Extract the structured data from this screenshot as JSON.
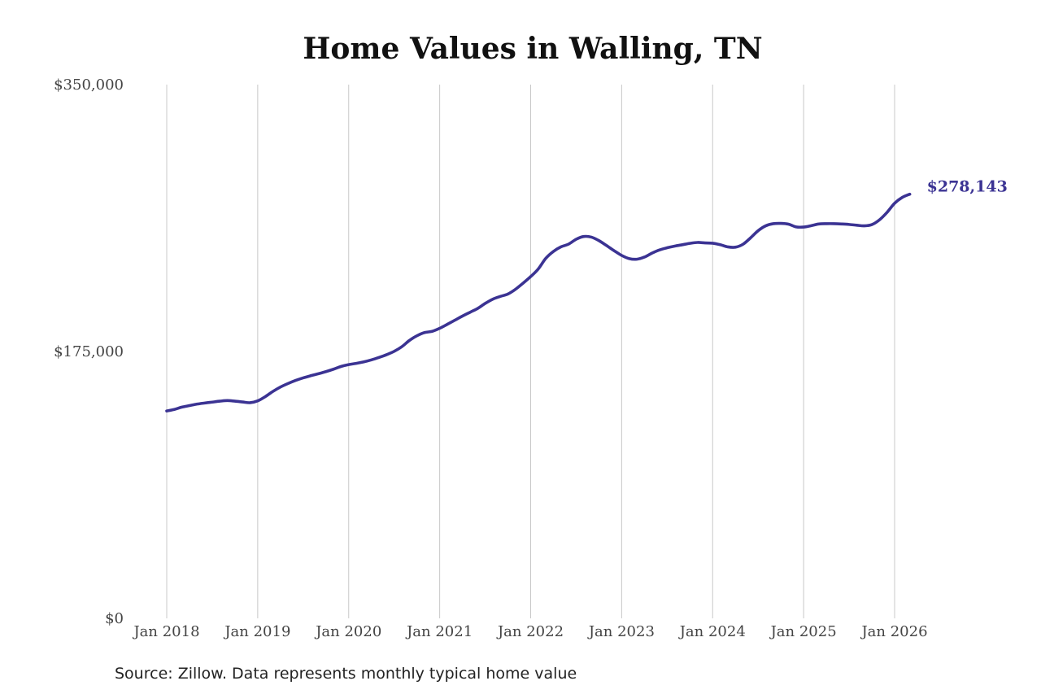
{
  "colors": {
    "line": "#3b3393",
    "grid": "#c8c8c8",
    "text": "#222222"
  },
  "chart_data": {
    "type": "line",
    "title": "Home Values in Walling, TN",
    "xlabel": "",
    "ylabel": "",
    "ylim": [
      0,
      350000
    ],
    "yticks": [
      0,
      175000,
      350000
    ],
    "ytick_labels": [
      "$0",
      "$175,000",
      "$350,000"
    ],
    "xticks": [
      "2018-01",
      "2019-01",
      "2020-01",
      "2021-01",
      "2022-01",
      "2023-01",
      "2024-01",
      "2025-01",
      "2026-01"
    ],
    "xtick_labels": [
      "Jan 2018",
      "Jan 2019",
      "Jan 2020",
      "Jan 2021",
      "Jan 2022",
      "Jan 2023",
      "Jan 2024",
      "Jan 2025",
      "Jan 2026"
    ],
    "grid": "vertical",
    "legend": "none",
    "end_label": "$278,143",
    "source": "Source: Zillow. Data represents monthly typical home value",
    "series": [
      {
        "points": [
          [
            "2018-01",
            136000
          ],
          [
            "2018-02",
            137000
          ],
          [
            "2018-03",
            138500
          ],
          [
            "2018-04",
            139500
          ],
          [
            "2018-05",
            140500
          ],
          [
            "2018-06",
            141200
          ],
          [
            "2018-07",
            141800
          ],
          [
            "2018-08",
            142400
          ],
          [
            "2018-09",
            142800
          ],
          [
            "2018-10",
            142400
          ],
          [
            "2018-11",
            141900
          ],
          [
            "2018-12",
            141400
          ],
          [
            "2019-01",
            142600
          ],
          [
            "2019-02",
            145400
          ],
          [
            "2019-03",
            148800
          ],
          [
            "2019-04",
            151700
          ],
          [
            "2019-05",
            154000
          ],
          [
            "2019-06",
            156000
          ],
          [
            "2019-07",
            157700
          ],
          [
            "2019-08",
            159100
          ],
          [
            "2019-09",
            160400
          ],
          [
            "2019-10",
            161800
          ],
          [
            "2019-11",
            163400
          ],
          [
            "2019-12",
            165200
          ],
          [
            "2020-01",
            166400
          ],
          [
            "2020-02",
            167200
          ],
          [
            "2020-03",
            168200
          ],
          [
            "2020-04",
            169500
          ],
          [
            "2020-05",
            171100
          ],
          [
            "2020-06",
            172900
          ],
          [
            "2020-07",
            175100
          ],
          [
            "2020-08",
            178100
          ],
          [
            "2020-09",
            182200
          ],
          [
            "2020-10",
            185300
          ],
          [
            "2020-11",
            187400
          ],
          [
            "2020-12",
            188200
          ],
          [
            "2021-01",
            190200
          ],
          [
            "2021-02",
            192800
          ],
          [
            "2021-03",
            195500
          ],
          [
            "2021-04",
            198200
          ],
          [
            "2021-05",
            200700
          ],
          [
            "2021-06",
            203200
          ],
          [
            "2021-07",
            206500
          ],
          [
            "2021-08",
            209300
          ],
          [
            "2021-09",
            211100
          ],
          [
            "2021-10",
            212700
          ],
          [
            "2021-11",
            215800
          ],
          [
            "2021-12",
            219800
          ],
          [
            "2022-01",
            224100
          ],
          [
            "2022-02",
            229100
          ],
          [
            "2022-03",
            236100
          ],
          [
            "2022-04",
            240600
          ],
          [
            "2022-05",
            243600
          ],
          [
            "2022-06",
            245400
          ],
          [
            "2022-07",
            248600
          ],
          [
            "2022-08",
            250400
          ],
          [
            "2022-09",
            250000
          ],
          [
            "2022-10",
            247700
          ],
          [
            "2022-11",
            244500
          ],
          [
            "2022-12",
            241100
          ],
          [
            "2023-01",
            238000
          ],
          [
            "2023-02",
            235900
          ],
          [
            "2023-03",
            235500
          ],
          [
            "2023-04",
            236900
          ],
          [
            "2023-05",
            239500
          ],
          [
            "2023-06",
            241600
          ],
          [
            "2023-07",
            243000
          ],
          [
            "2023-08",
            244100
          ],
          [
            "2023-09",
            245000
          ],
          [
            "2023-10",
            245900
          ],
          [
            "2023-11",
            246500
          ],
          [
            "2023-12",
            246200
          ],
          [
            "2024-01",
            246000
          ],
          [
            "2024-02",
            245000
          ],
          [
            "2024-03",
            243600
          ],
          [
            "2024-04",
            243400
          ],
          [
            "2024-05",
            245300
          ],
          [
            "2024-06",
            249500
          ],
          [
            "2024-07",
            254200
          ],
          [
            "2024-08",
            257400
          ],
          [
            "2024-09",
            258800
          ],
          [
            "2024-10",
            259000
          ],
          [
            "2024-11",
            258500
          ],
          [
            "2024-12",
            256700
          ],
          [
            "2025-01",
            256600
          ],
          [
            "2025-02",
            257500
          ],
          [
            "2025-03",
            258600
          ],
          [
            "2025-04",
            258800
          ],
          [
            "2025-05",
            258800
          ],
          [
            "2025-06",
            258600
          ],
          [
            "2025-07",
            258300
          ],
          [
            "2025-08",
            257800
          ],
          [
            "2025-09",
            257400
          ],
          [
            "2025-10",
            258200
          ],
          [
            "2025-11",
            261300
          ],
          [
            "2025-12",
            266200
          ],
          [
            "2026-01",
            272200
          ],
          [
            "2026-02",
            276000
          ],
          [
            "2026-03",
            278143
          ]
        ]
      }
    ]
  }
}
